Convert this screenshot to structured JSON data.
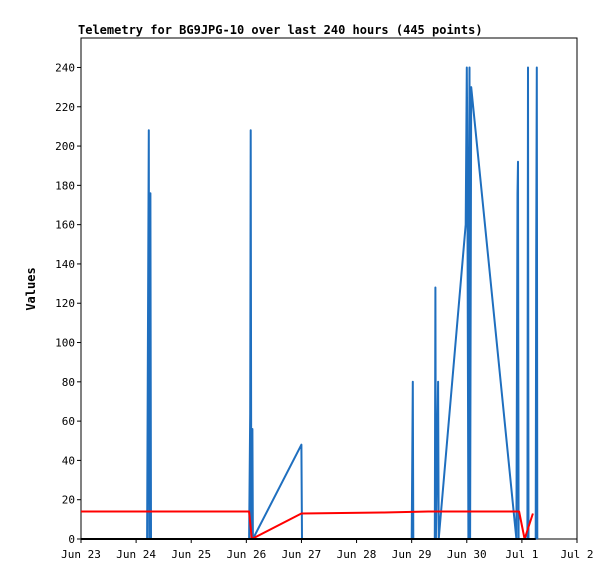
{
  "chart_data": {
    "type": "line",
    "title": "Telemetry for BG9JPG-10 over last 240 hours (445 points)",
    "xlabel": "",
    "ylabel": "Values",
    "ylim": [
      0,
      255
    ],
    "y_ticks": [
      0,
      20,
      40,
      60,
      80,
      100,
      120,
      140,
      160,
      180,
      200,
      220,
      240
    ],
    "x_tick_labels": [
      "Jun 23",
      "Jun 24",
      "Jun 25",
      "Jun 26",
      "Jun 27",
      "Jun 28",
      "Jun 29",
      "Jun 30",
      "Jul 1",
      "Jul 2"
    ],
    "x_unit": "days since Jun 23",
    "xlim": [
      0,
      9.0
    ],
    "grid": false,
    "series": [
      {
        "color": "#1f6fbf",
        "points": [
          [
            0.0,
            0
          ],
          [
            1.2,
            0
          ],
          [
            1.23,
            208
          ],
          [
            1.24,
            0
          ],
          [
            1.26,
            176
          ],
          [
            1.27,
            0
          ],
          [
            3.05,
            0
          ],
          [
            3.07,
            64
          ],
          [
            3.08,
            208
          ],
          [
            3.09,
            0
          ],
          [
            3.11,
            56
          ],
          [
            3.12,
            0
          ],
          [
            4.0,
            48
          ],
          [
            4.01,
            0
          ],
          [
            6.0,
            0
          ],
          [
            6.02,
            80
          ],
          [
            6.03,
            0
          ],
          [
            6.42,
            0
          ],
          [
            6.43,
            128
          ],
          [
            6.44,
            0
          ],
          [
            6.48,
            80
          ],
          [
            6.49,
            0
          ],
          [
            6.98,
            160
          ],
          [
            7.0,
            240
          ],
          [
            7.01,
            200
          ],
          [
            7.03,
            0
          ],
          [
            7.05,
            240
          ],
          [
            7.06,
            0
          ],
          [
            7.08,
            230
          ],
          [
            7.9,
            0
          ],
          [
            7.92,
            176
          ],
          [
            7.93,
            192
          ],
          [
            7.94,
            0
          ],
          [
            8.1,
            0
          ],
          [
            8.11,
            240
          ],
          [
            8.12,
            0
          ],
          [
            8.25,
            0
          ],
          [
            8.26,
            144
          ],
          [
            8.27,
            240
          ],
          [
            8.28,
            0
          ]
        ]
      },
      {
        "color": "#ff0000",
        "points": [
          [
            0.0,
            14
          ],
          [
            3.05,
            14
          ],
          [
            3.1,
            0
          ],
          [
            4.0,
            13
          ],
          [
            5.5,
            13.5
          ],
          [
            6.3,
            14
          ],
          [
            7.95,
            14
          ],
          [
            8.05,
            0
          ],
          [
            8.2,
            13
          ]
        ]
      },
      {
        "color": "#000000",
        "points": [
          [
            0.0,
            0
          ],
          [
            8.25,
            0
          ]
        ]
      }
    ]
  }
}
